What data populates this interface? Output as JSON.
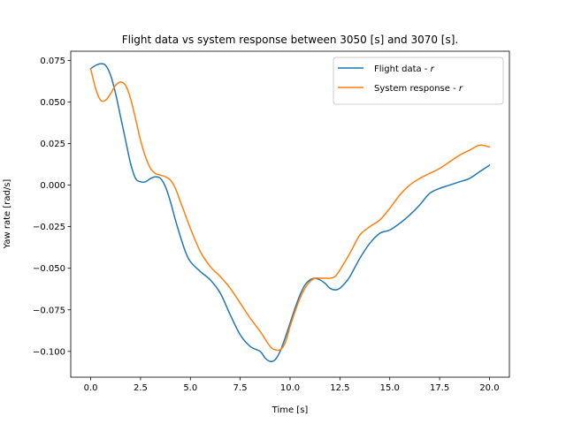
{
  "chart_data": {
    "type": "line",
    "title": "Flight data vs system response between 3050 [s] and 3070 [s].",
    "xlabel": "Time [s]",
    "ylabel": "Yaw rate [rad/s]",
    "xlim": [
      -1.0,
      21.0
    ],
    "ylim": [
      -0.1155,
      0.0805
    ],
    "xticks": [
      0.0,
      2.5,
      5.0,
      7.5,
      10.0,
      12.5,
      15.0,
      17.5,
      20.0
    ],
    "xtick_labels": [
      "0.0",
      "2.5",
      "5.0",
      "7.5",
      "10.0",
      "12.5",
      "15.0",
      "17.5",
      "20.0"
    ],
    "yticks": [
      0.075,
      0.05,
      0.025,
      0.0,
      -0.025,
      -0.05,
      -0.075,
      -0.1
    ],
    "ytick_labels": [
      "0.075",
      "0.050",
      "0.025",
      "0.000",
      "−0.025",
      "−0.050",
      "−0.075",
      "−0.100"
    ],
    "grid": false,
    "legend_position": "top-right",
    "series": [
      {
        "name": "Flight data - r",
        "legend_prefix": "Flight data - ",
        "legend_var": "r",
        "color": "#1f77b4",
        "x": [
          0.0,
          0.25,
          0.5,
          0.75,
          1.0,
          1.25,
          1.5,
          1.75,
          2.0,
          2.25,
          2.5,
          2.75,
          3.0,
          3.25,
          3.5,
          3.75,
          4.0,
          4.25,
          4.5,
          4.75,
          5.0,
          5.5,
          6.0,
          6.5,
          7.0,
          7.5,
          8.0,
          8.5,
          8.75,
          9.0,
          9.25,
          9.5,
          9.75,
          10.0,
          10.25,
          10.5,
          10.75,
          11.0,
          11.25,
          11.5,
          11.75,
          12.0,
          12.25,
          12.5,
          12.75,
          13.0,
          13.5,
          14.0,
          14.5,
          15.0,
          15.5,
          16.0,
          16.5,
          17.0,
          17.5,
          18.0,
          18.5,
          19.0,
          19.5,
          20.0
        ],
        "values": [
          0.07,
          0.072,
          0.073,
          0.072,
          0.066,
          0.055,
          0.041,
          0.027,
          0.013,
          0.004,
          0.002,
          0.002,
          0.004,
          0.005,
          0.004,
          -0.001,
          -0.01,
          -0.021,
          -0.031,
          -0.04,
          -0.046,
          -0.052,
          -0.057,
          -0.065,
          -0.078,
          -0.09,
          -0.097,
          -0.1,
          -0.104,
          -0.106,
          -0.105,
          -0.1,
          -0.092,
          -0.083,
          -0.074,
          -0.066,
          -0.06,
          -0.057,
          -0.056,
          -0.057,
          -0.059,
          -0.062,
          -0.063,
          -0.062,
          -0.059,
          -0.055,
          -0.044,
          -0.035,
          -0.029,
          -0.027,
          -0.023,
          -0.018,
          -0.012,
          -0.005,
          -0.002,
          0.0,
          0.002,
          0.004,
          0.008,
          0.012
        ]
      },
      {
        "name": "System response - r",
        "legend_prefix": "System response - ",
        "legend_var": "r",
        "color": "#ff7f0e",
        "x": [
          0.0,
          0.25,
          0.5,
          0.75,
          1.0,
          1.25,
          1.5,
          1.75,
          2.0,
          2.25,
          2.5,
          2.75,
          3.0,
          3.25,
          3.5,
          3.75,
          4.0,
          4.25,
          4.5,
          4.75,
          5.0,
          5.5,
          6.0,
          6.5,
          7.0,
          7.5,
          8.0,
          8.5,
          9.0,
          9.25,
          9.5,
          9.75,
          10.0,
          10.25,
          10.5,
          10.75,
          11.0,
          11.25,
          11.5,
          11.75,
          12.0,
          12.25,
          12.5,
          13.0,
          13.5,
          14.0,
          14.5,
          15.0,
          15.5,
          16.0,
          16.5,
          17.0,
          17.5,
          18.0,
          18.5,
          19.0,
          19.5,
          20.0
        ],
        "values": [
          0.07,
          0.058,
          0.051,
          0.051,
          0.055,
          0.06,
          0.062,
          0.06,
          0.052,
          0.04,
          0.027,
          0.017,
          0.01,
          0.007,
          0.006,
          0.005,
          0.003,
          -0.002,
          -0.01,
          -0.018,
          -0.026,
          -0.04,
          -0.049,
          -0.055,
          -0.062,
          -0.071,
          -0.08,
          -0.088,
          -0.097,
          -0.099,
          -0.099,
          -0.095,
          -0.085,
          -0.076,
          -0.068,
          -0.062,
          -0.058,
          -0.056,
          -0.056,
          -0.056,
          -0.056,
          -0.055,
          -0.051,
          -0.041,
          -0.03,
          -0.025,
          -0.021,
          -0.014,
          -0.006,
          0.0,
          0.004,
          0.007,
          0.01,
          0.014,
          0.018,
          0.021,
          0.024,
          0.023
        ]
      }
    ]
  }
}
